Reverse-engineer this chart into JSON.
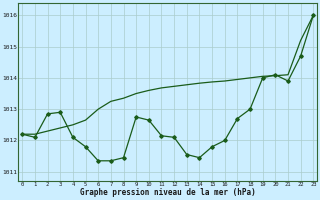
{
  "x": [
    0,
    1,
    2,
    3,
    4,
    5,
    6,
    7,
    8,
    9,
    10,
    11,
    12,
    13,
    14,
    15,
    16,
    17,
    18,
    19,
    20,
    21,
    22,
    23
  ],
  "line_zigzag": [
    1012.2,
    1012.1,
    1012.85,
    1012.9,
    1012.1,
    1011.8,
    1011.35,
    1011.35,
    1011.45,
    1012.75,
    1012.65,
    1012.15,
    1012.1,
    1011.55,
    1011.45,
    1011.8,
    1012.0,
    1012.7,
    1013.0,
    1014.0,
    1014.1,
    1013.9,
    1014.7,
    1016.0
  ],
  "line_trend": [
    1012.2,
    1012.2,
    1012.3,
    1012.4,
    1012.5,
    1012.65,
    1013.0,
    1013.25,
    1013.35,
    1013.5,
    1013.6,
    1013.68,
    1013.73,
    1013.78,
    1013.83,
    1013.87,
    1013.9,
    1013.95,
    1014.0,
    1014.05,
    1014.07,
    1014.1,
    1015.2,
    1016.0
  ],
  "bg_color": "#cceeff",
  "grid_color": "#aacccc",
  "line_color": "#1a5c1a",
  "xlabel": "Graphe pression niveau de la mer (hPa)",
  "yticks": [
    1011,
    1012,
    1013,
    1014,
    1015,
    1016
  ],
  "xticks": [
    0,
    1,
    2,
    3,
    4,
    5,
    6,
    7,
    8,
    9,
    10,
    11,
    12,
    13,
    14,
    15,
    16,
    17,
    18,
    19,
    20,
    21,
    22,
    23
  ],
  "ylim": [
    1010.7,
    1016.4
  ],
  "xlim": [
    -0.3,
    23.3
  ]
}
